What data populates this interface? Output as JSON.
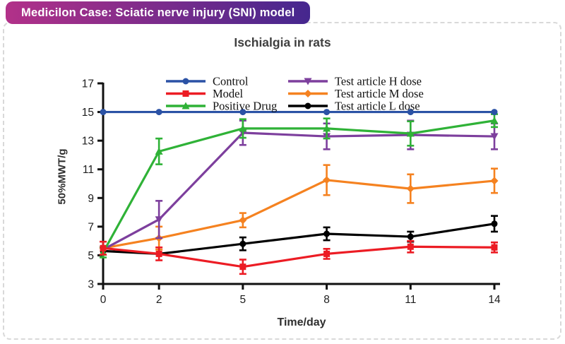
{
  "badge": {
    "label": "Medicilon Case: Sciatic nerve injury (SNI) model",
    "gradient_left": "#b23189",
    "gradient_right": "#45278e",
    "text_color": "#ffffff"
  },
  "chart_data": {
    "type": "line",
    "title": "Ischialgia in rats",
    "xlabel": "Time/day",
    "ylabel": "50%MWT/g",
    "x": [
      0,
      2,
      5,
      8,
      11,
      14
    ],
    "xticks": [
      0,
      2,
      5,
      8,
      11,
      14
    ],
    "xlim": [
      0,
      14
    ],
    "yticks": [
      3,
      5,
      7,
      9,
      11,
      13,
      15,
      17
    ],
    "ylim": [
      3,
      17
    ],
    "grid": false,
    "error_bars": true,
    "legend_position": "top-inside, two columns",
    "axis_color": "#111111",
    "series": [
      {
        "name": "Control",
        "color": "#2b52a5",
        "marker": "circle",
        "values": [
          15,
          15,
          15,
          15,
          15,
          15
        ],
        "errors": [
          0,
          0,
          0,
          0,
          0,
          0
        ]
      },
      {
        "name": "Model",
        "color": "#ec1c24",
        "marker": "square",
        "values": [
          5.5,
          5.1,
          4.2,
          5.1,
          5.6,
          5.55
        ],
        "errors": [
          0.45,
          0.45,
          0.5,
          0.35,
          0.4,
          0.35
        ]
      },
      {
        "name": "Positive Drug",
        "color": "#2fb237",
        "marker": "triangle-up",
        "values": [
          5.2,
          12.25,
          13.85,
          13.85,
          13.5,
          14.4
        ],
        "errors": [
          0.35,
          0.9,
          0.65,
          0.7,
          0.85,
          0.45
        ]
      },
      {
        "name": "Test article H dose",
        "color": "#7d3f9d",
        "marker": "triangle-down",
        "values": [
          5.4,
          7.5,
          13.55,
          13.3,
          13.4,
          13.3
        ],
        "errors": [
          0,
          1.3,
          0.85,
          0.9,
          1.0,
          0.9
        ]
      },
      {
        "name": "Test article M dose",
        "color": "#f58220",
        "marker": "diamond",
        "values": [
          5.5,
          6.2,
          7.45,
          10.25,
          9.65,
          10.2
        ],
        "errors": [
          0,
          0.8,
          0.5,
          1.05,
          1.0,
          0.85
        ]
      },
      {
        "name": "Test article L dose",
        "color": "#000000",
        "marker": "circle",
        "values": [
          5.3,
          5.1,
          5.8,
          6.5,
          6.3,
          7.2
        ],
        "errors": [
          0,
          0,
          0.45,
          0.45,
          0.35,
          0.55
        ]
      }
    ],
    "legend_columns": [
      [
        0,
        1,
        2
      ],
      [
        3,
        4,
        5
      ]
    ]
  }
}
